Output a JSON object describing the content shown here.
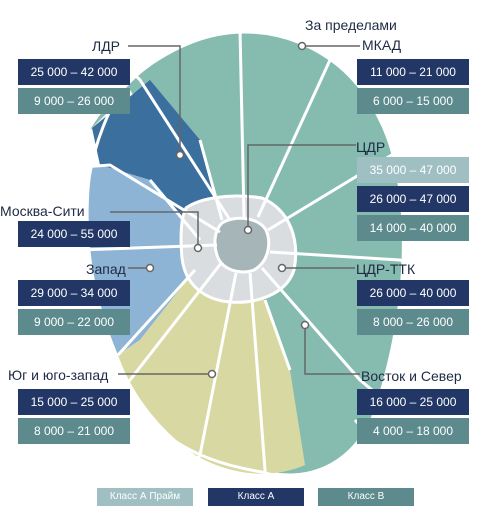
{
  "zones": {
    "ldr": {
      "name": "ЛДР",
      "a": "25 000 – 42 000",
      "b": "9 000 – 26 000"
    },
    "mkad": {
      "name_line1": "За пределами",
      "name_line2": "МКАД",
      "a": "11 000 – 21 000",
      "b": "6 000 – 15 000"
    },
    "cdr": {
      "name": "ЦДР",
      "prime": "35 000 – 47 000",
      "a": "26 000 – 47 000",
      "b": "14 000 – 40 000"
    },
    "city": {
      "name": "Москва-Сити",
      "a": "24 000 – 55 000"
    },
    "west": {
      "name": "Запад",
      "a": "29 000 – 34 000",
      "b": "9 000 – 22 000"
    },
    "cdr_ttk": {
      "name": "ЦДР-ТТК",
      "a": "26 000 – 40 000",
      "b": "8 000 – 26 000"
    },
    "south": {
      "name": "Юг и юго-запад",
      "a": "15 000 – 25 000",
      "b": "8 000 – 21 000"
    },
    "east": {
      "name": "Восток и Север",
      "a": "16 000 – 25 000",
      "b": "4 000 – 18 000"
    }
  },
  "legend": {
    "prime": "Класс А Прайм",
    "class_a": "Класс А",
    "class_b": "Класс В"
  },
  "colors": {
    "class_a": "#233766",
    "class_b": "#5d8a8c",
    "prime": "#9fbfc2",
    "zone_ldr": "#3a6f9e",
    "zone_west": "#8db4d4",
    "zone_south": "#d8d9a2",
    "zone_mkad": "#86bcb0",
    "zone_center": "#a5b5b8",
    "zone_ttk": "#d9dde0",
    "roads": "#ffffff"
  }
}
